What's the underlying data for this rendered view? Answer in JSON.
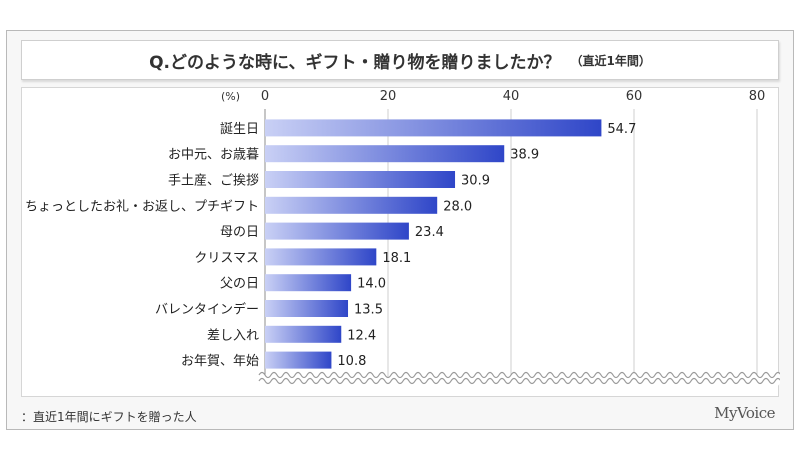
{
  "title": "Q.どのような時に、ギフト・贈り物を贈りましたか？",
  "title_note": "（直近1年間）",
  "footnote": "：直近1年間にギフトを贈った人",
  "brand": "MyVoice",
  "colors": {
    "bar_dark": "#2f46c8",
    "bar_light": "#c9d0f5",
    "grid": "#cfcfcf",
    "axis": "#8c8c8c"
  },
  "chart_data": {
    "type": "bar",
    "orientation": "horizontal",
    "unit_label": "(%)",
    "xlim": [
      0,
      80
    ],
    "ticks": [
      0,
      20,
      40,
      60,
      80
    ],
    "grid": true,
    "categories": [
      "誕生日",
      "お中元、お歳暮",
      "手土産、ご挨拶",
      "ちょっとしたお礼・お返し、プチギフト",
      "母の日",
      "クリスマス",
      "父の日",
      "バレンタインデー",
      "差し入れ",
      "お年賀、年始"
    ],
    "values": [
      54.7,
      38.9,
      30.9,
      28.0,
      23.4,
      18.1,
      14.0,
      13.5,
      12.4,
      10.8
    ],
    "labels": [
      "54.7",
      "38.9",
      "30.9",
      "28.0",
      "23.4",
      "18.1",
      "14.0",
      "13.5",
      "12.4",
      "10.8"
    ]
  }
}
